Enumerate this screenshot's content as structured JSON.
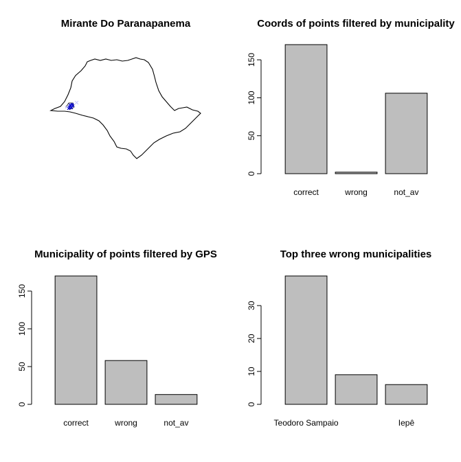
{
  "map_panel": {
    "title": "Mirante Do Paranapanema",
    "outline_color": "#000000",
    "point_color": "#0000cd",
    "wrong_point_color": "#c8c8ff"
  },
  "chart_data": [
    {
      "type": "bar",
      "title": "Coords of points filtered by municipality",
      "categories": [
        "correct",
        "wrong",
        "not_av"
      ],
      "category_labels": [
        "correct",
        "wrong",
        "not_av"
      ],
      "values": [
        170,
        2,
        106
      ],
      "ylim": [
        0,
        170
      ],
      "yticks": [
        0,
        50,
        100,
        150
      ],
      "xlabel": "",
      "ylabel": "",
      "bar_color": "#bebebe",
      "grid": false
    },
    {
      "type": "bar",
      "title": "Municipality of points filtered by GPS",
      "categories": [
        "correct",
        "wrong",
        "not_av"
      ],
      "category_labels": [
        "correct",
        "wrong",
        "not_av"
      ],
      "values": [
        170,
        58,
        13
      ],
      "ylim": [
        0,
        170
      ],
      "yticks": [
        0,
        50,
        100,
        150
      ],
      "xlabel": "",
      "ylabel": "",
      "bar_color": "#bebebe",
      "grid": false
    },
    {
      "type": "bar",
      "title": "Top three wrong municipalities",
      "categories": [
        "Teodoro Sampaio",
        "",
        "Iepê"
      ],
      "category_labels": [
        "Teodoro Sampaio",
        "",
        "Iepê"
      ],
      "values": [
        39,
        9,
        6
      ],
      "ylim": [
        0,
        39
      ],
      "yticks": [
        0,
        10,
        20,
        30
      ],
      "xlabel": "",
      "ylabel": "",
      "bar_color": "#bebebe",
      "grid": false
    }
  ]
}
